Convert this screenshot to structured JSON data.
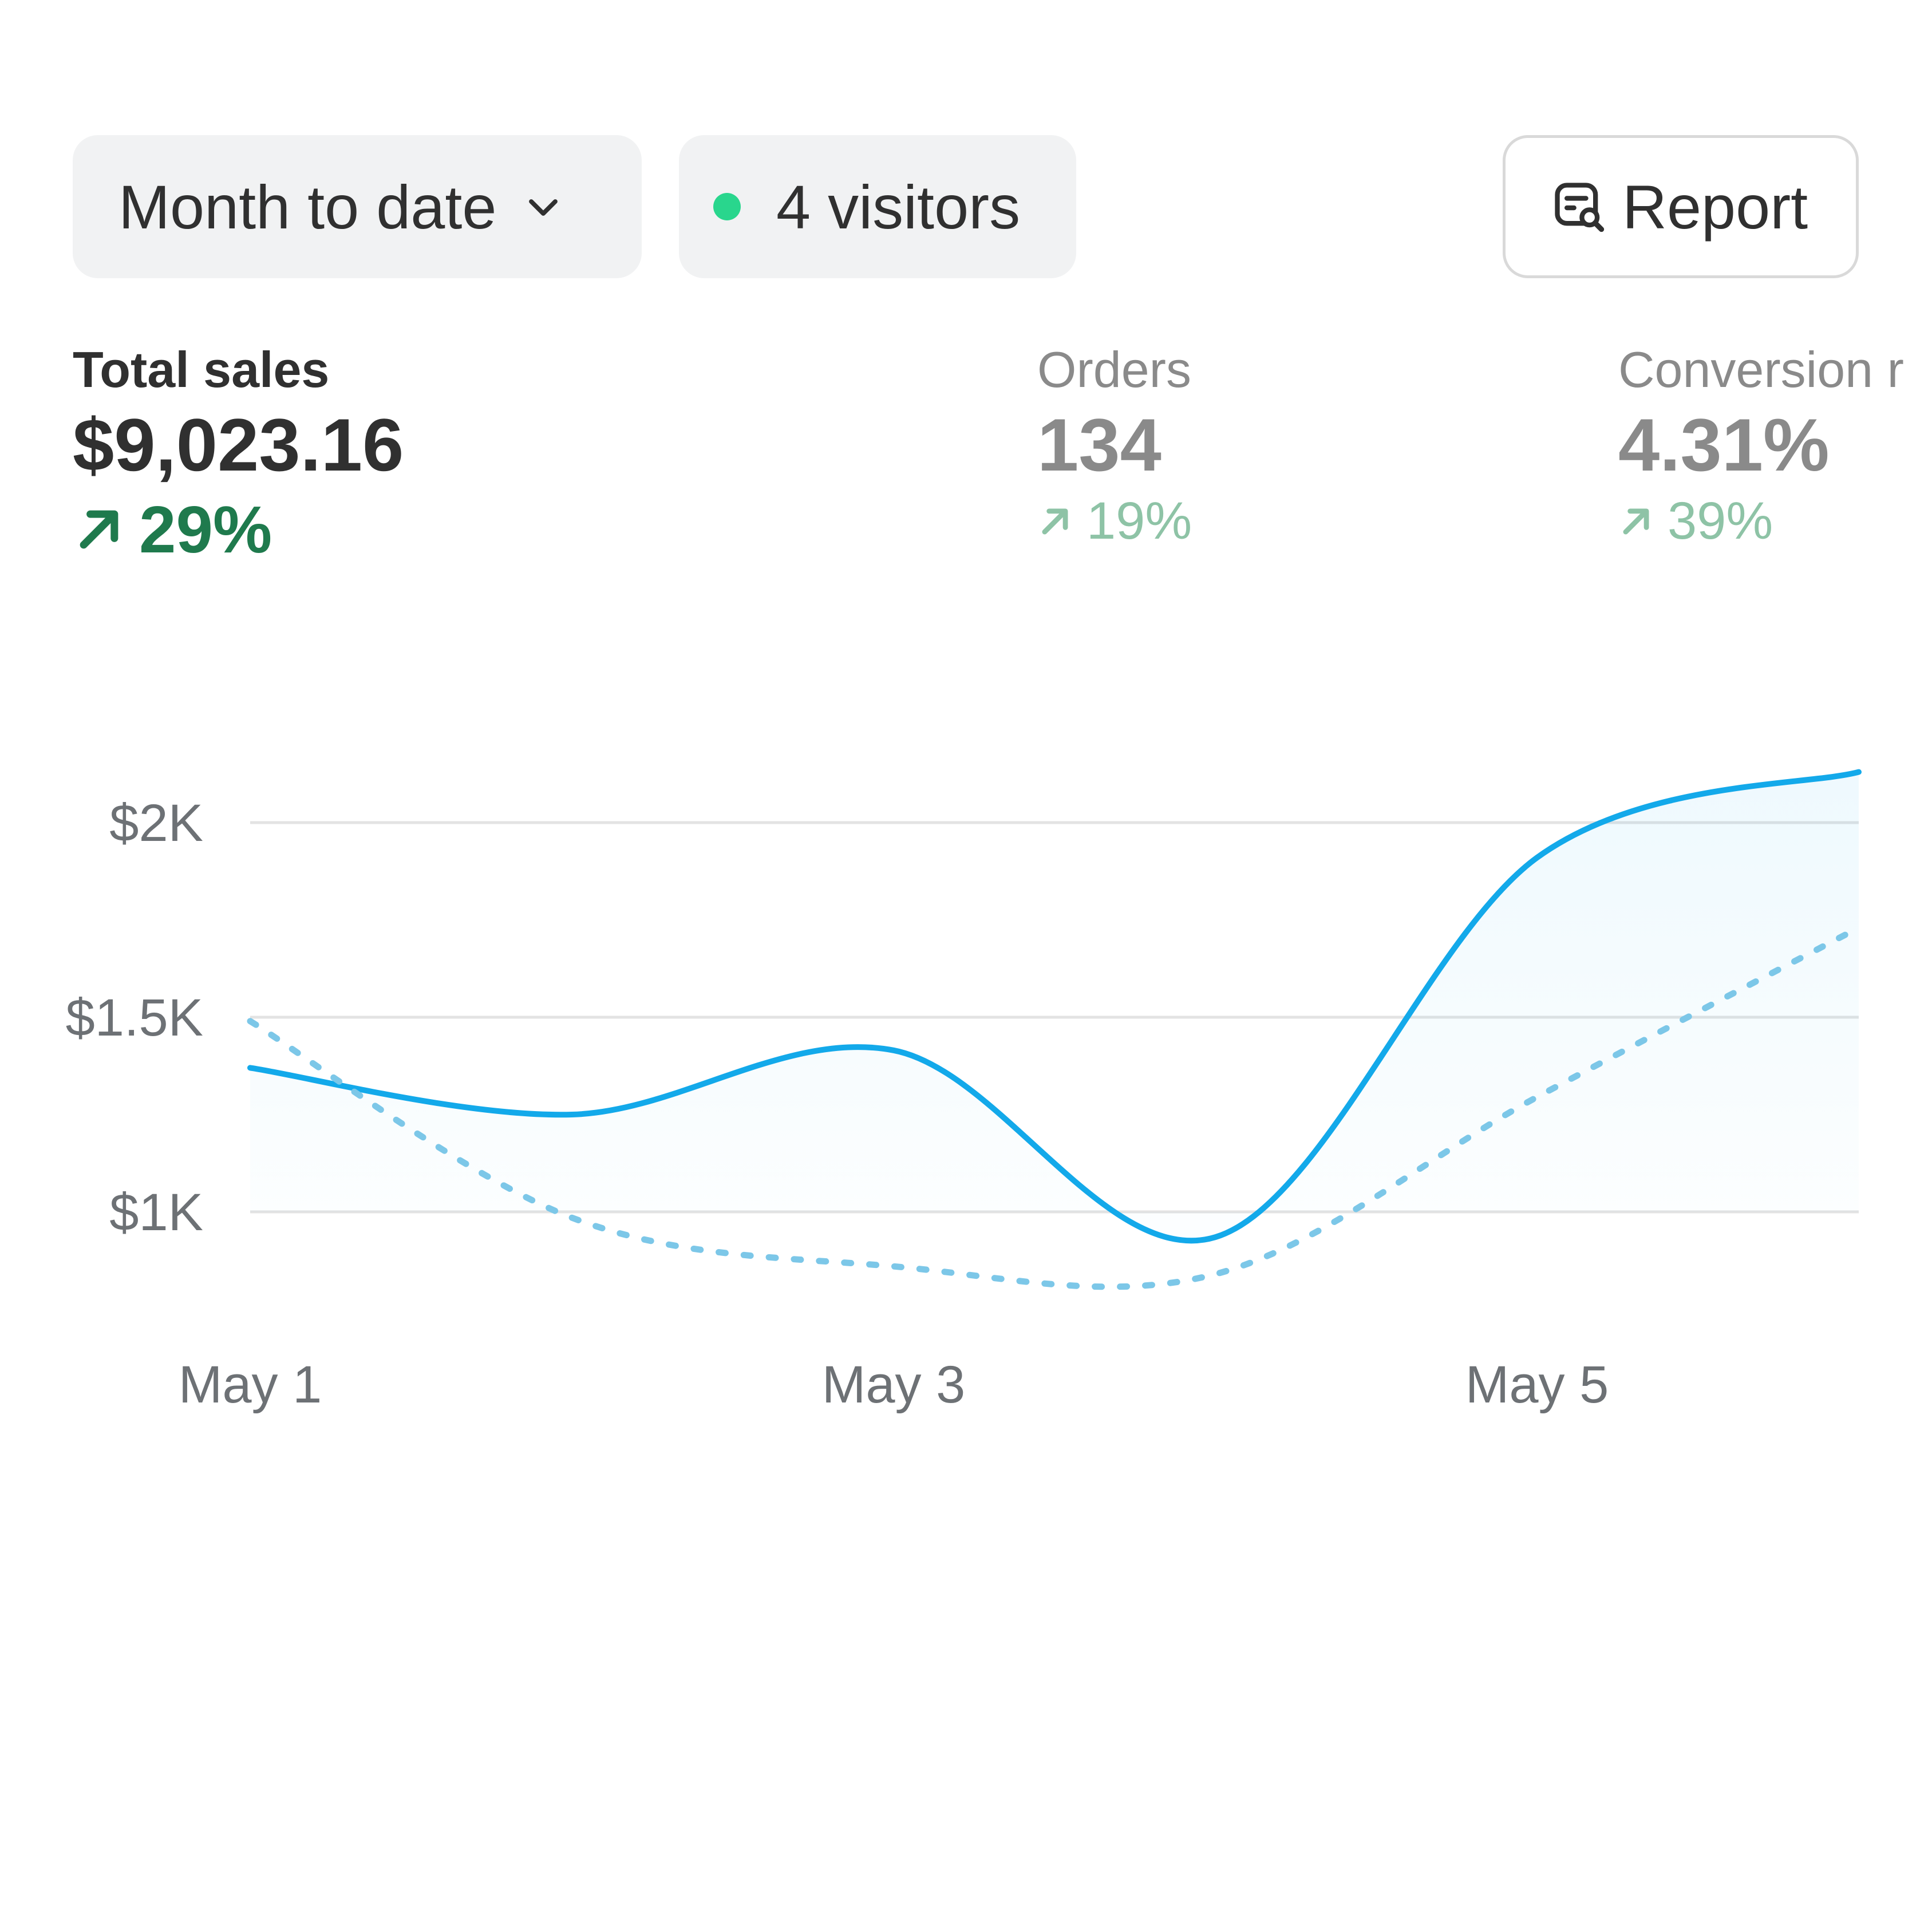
{
  "toolbar": {
    "date_range_label": "Month to date",
    "visitors_label": "4 visitors",
    "report_label": "Report",
    "live_dot_color": "#29d68d"
  },
  "icons": {
    "date_range_chevron": "chevron-down-icon",
    "report_icon": "report-search-icon",
    "delta_arrow": "arrow-up-right-icon"
  },
  "metrics": [
    {
      "label": "Total sales",
      "value": "$9,023.16",
      "delta": "29%",
      "direction": "up"
    },
    {
      "label": "Orders",
      "value": "134",
      "delta": "19%",
      "direction": "up"
    },
    {
      "label": "Conversion r",
      "value": "4.31%",
      "delta": "39%",
      "direction": "up"
    }
  ],
  "colors": {
    "primary_series": "#13a9ea",
    "comparison_series": "#7cc7e8",
    "positive_delta": "#1f7a4d",
    "positive_delta_muted": "#8ec3a6",
    "gridline": "#e3e3e3"
  },
  "chart_data": {
    "type": "line",
    "x_tick_labels": [
      "May 1",
      "May 3",
      "May 5"
    ],
    "x": [
      1,
      2,
      3,
      4,
      5,
      6
    ],
    "y_tick_values": [
      1000,
      1500,
      2000
    ],
    "y_tick_labels": [
      "$1K",
      "$1.5K",
      "$2K"
    ],
    "ylim": [
      750,
      2200
    ],
    "xlim": [
      1,
      6
    ],
    "grid": true,
    "legend": "none",
    "series": [
      {
        "style": "solid",
        "fill": true,
        "values": [
          1370,
          1250,
          1415,
          935,
          1910,
          2130
        ]
      },
      {
        "style": "dashed",
        "fill": false,
        "values": [
          1490,
          985,
          860,
          840,
          1295,
          1730
        ]
      }
    ]
  }
}
